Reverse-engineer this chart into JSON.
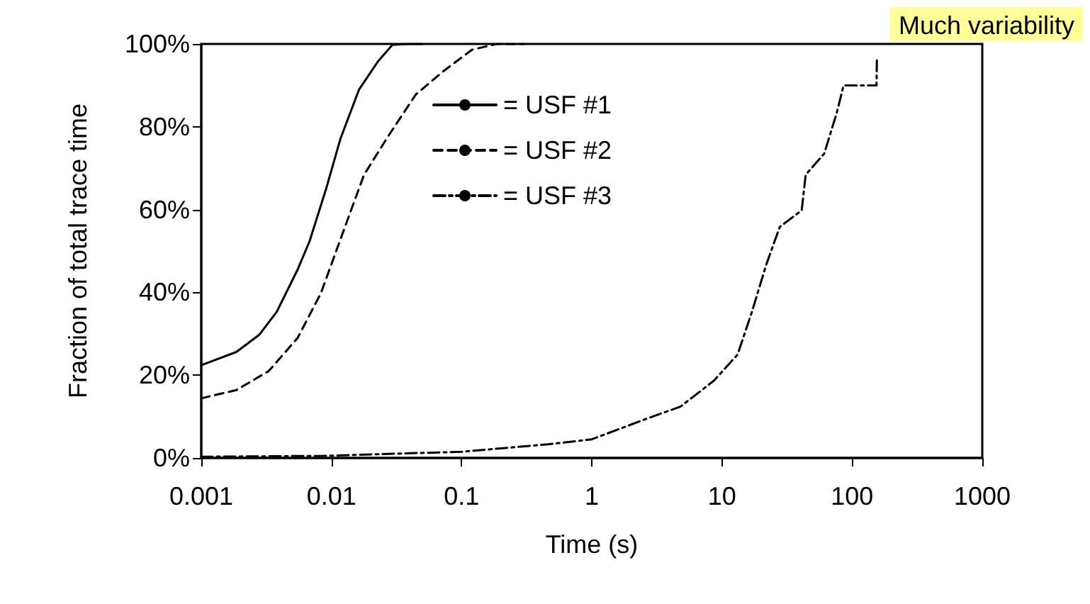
{
  "chart_data": {
    "type": "line",
    "xlabel": "Time (s)",
    "ylabel": "Fraction of total trace time",
    "log": "x",
    "xlim": [
      0.001,
      1000
    ],
    "xticks": [
      0.001,
      0.01,
      0.1,
      1,
      10,
      100,
      1000
    ],
    "ylim": [
      0,
      100
    ],
    "yticks": [
      {
        "value": 0,
        "label": "0%"
      },
      {
        "value": 20,
        "label": "20%"
      },
      {
        "value": 40,
        "label": "40%"
      },
      {
        "value": 60,
        "label": "60%"
      },
      {
        "value": 80,
        "label": "80%"
      },
      {
        "value": 100,
        "label": "100%"
      }
    ],
    "grid": false,
    "legend": "top",
    "marker": "none",
    "annotations": [
      "Much variability"
    ],
    "series": [
      {
        "name": "= USF #1",
        "color": "#000000",
        "line_style": "solid",
        "x": [
          0.001,
          0.00186,
          0.0028,
          0.0038,
          0.0055,
          0.0068,
          0.0091,
          0.0117,
          0.0163,
          0.0228,
          0.0294,
          0.038,
          0.05
        ],
        "values": [
          22.4,
          25.6,
          29.8,
          35.3,
          45.5,
          52.4,
          65,
          77,
          89,
          95.8,
          99.8,
          100,
          100
        ]
      },
      {
        "name": "= USF #2",
        "color": "#000000",
        "line_style": "dashed",
        "x": [
          0.001,
          0.00186,
          0.0033,
          0.0055,
          0.0083,
          0.0127,
          0.0178,
          0.027,
          0.0445,
          0.073,
          0.12,
          0.186,
          0.3
        ],
        "values": [
          14.4,
          16.4,
          21,
          29,
          39.8,
          55.8,
          68.4,
          77.5,
          87.8,
          93.5,
          98.6,
          100,
          100
        ]
      },
      {
        "name": "= USF #3",
        "color": "#000000",
        "line_style": "dashdot",
        "x": [
          0.001,
          0.0085,
          0.1,
          0.46,
          1,
          2.7,
          4.8,
          8.7,
          13.2,
          17,
          21.9,
          27.8,
          41,
          44,
          61,
          76,
          86,
          154,
          155
        ],
        "values": [
          0.3,
          0.5,
          1.5,
          3.3,
          4.5,
          9.6,
          12.4,
          18.7,
          25,
          35.3,
          46.7,
          55.8,
          59.8,
          68.4,
          73.5,
          83.2,
          90,
          90,
          96
        ]
      }
    ]
  }
}
